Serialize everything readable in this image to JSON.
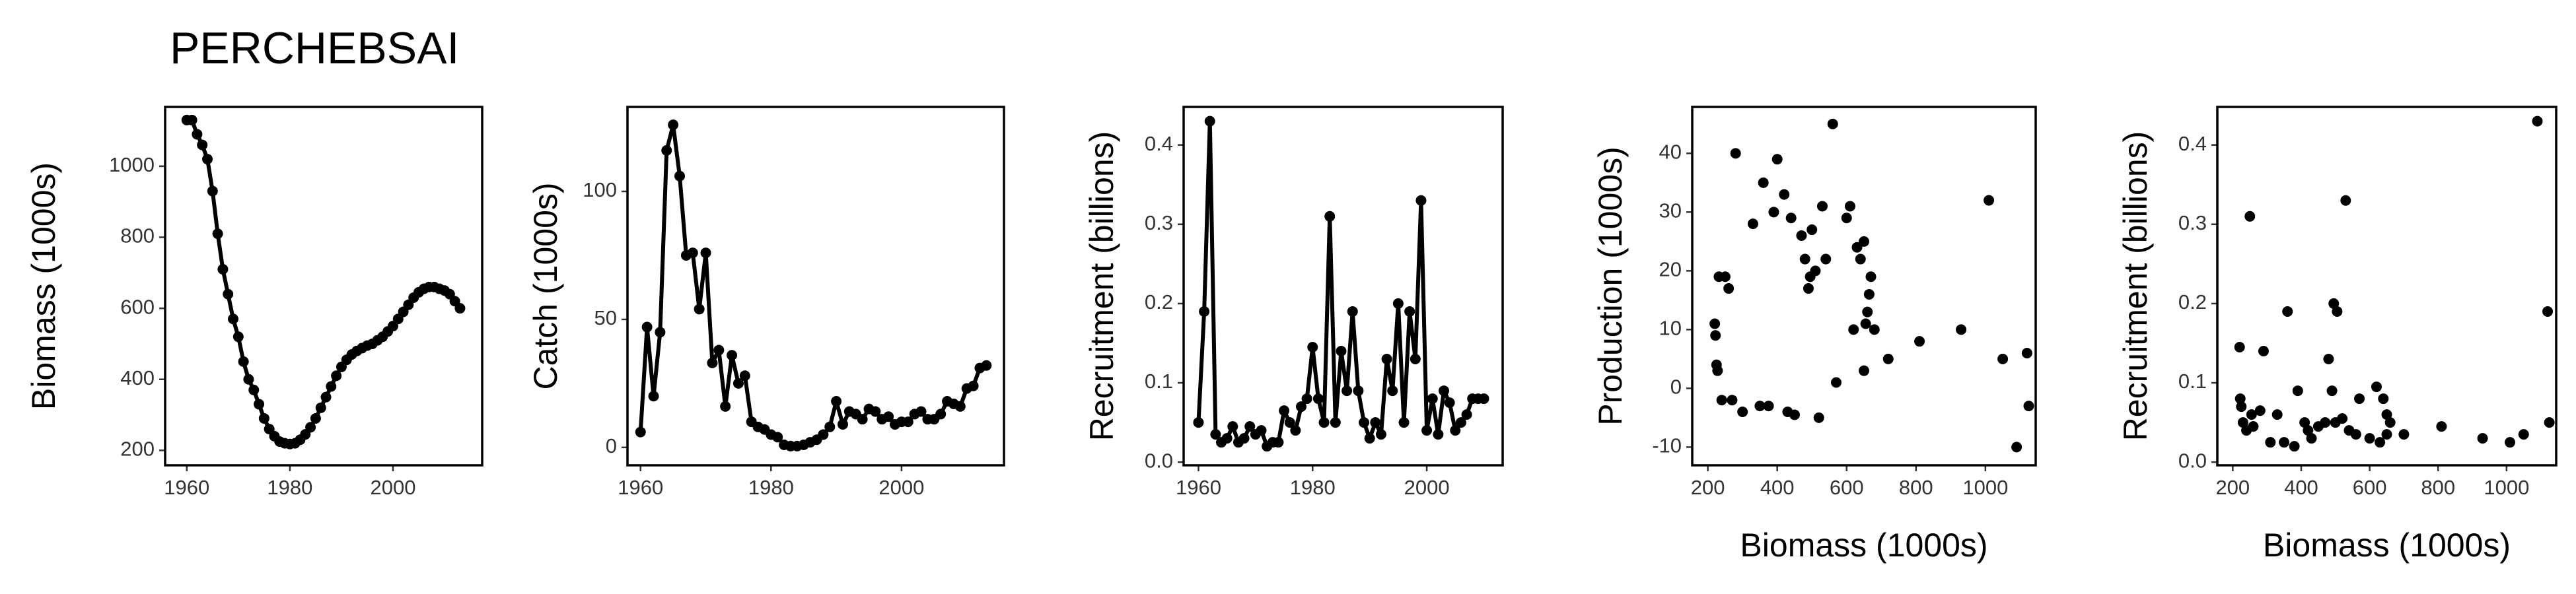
{
  "title": "PERCHEBSAI",
  "chart_data": [
    {
      "type": "line",
      "ylabel": "Biomass (1000s)",
      "x": [
        1960,
        1961,
        1962,
        1963,
        1964,
        1965,
        1966,
        1967,
        1968,
        1969,
        1970,
        1971,
        1972,
        1973,
        1974,
        1975,
        1976,
        1977,
        1978,
        1979,
        1980,
        1981,
        1982,
        1983,
        1984,
        1985,
        1986,
        1987,
        1988,
        1989,
        1990,
        1991,
        1992,
        1993,
        1994,
        1995,
        1996,
        1997,
        1998,
        1999,
        2000,
        2001,
        2002,
        2003,
        2004,
        2005,
        2006,
        2007,
        2008,
        2009,
        2010,
        2011,
        2012,
        2013
      ],
      "values": [
        1130,
        1130,
        1090,
        1060,
        1020,
        930,
        810,
        710,
        640,
        570,
        520,
        450,
        400,
        370,
        330,
        290,
        260,
        240,
        225,
        220,
        218,
        220,
        230,
        245,
        265,
        290,
        320,
        350,
        380,
        410,
        435,
        455,
        470,
        480,
        488,
        495,
        500,
        510,
        520,
        535,
        550,
        570,
        590,
        610,
        630,
        645,
        655,
        660,
        660,
        655,
        650,
        640,
        620,
        600
      ],
      "xlim": [
        1955.8,
        2017.3
      ],
      "ylim": [
        158,
        1167
      ],
      "xticks": [
        1960,
        1980,
        2000
      ],
      "yticks": [
        200,
        400,
        600,
        800,
        1000
      ],
      "color": "#000000"
    },
    {
      "type": "line",
      "ylabel": "Catch (1000s)",
      "x": [
        1960,
        1961,
        1962,
        1963,
        1964,
        1965,
        1966,
        1967,
        1968,
        1969,
        1970,
        1971,
        1972,
        1973,
        1974,
        1975,
        1976,
        1977,
        1978,
        1979,
        1980,
        1981,
        1982,
        1983,
        1984,
        1985,
        1986,
        1987,
        1988,
        1989,
        1990,
        1991,
        1992,
        1993,
        1994,
        1995,
        1996,
        1997,
        1998,
        1999,
        2000,
        2001,
        2002,
        2003,
        2004,
        2005,
        2006,
        2007,
        2008,
        2009,
        2010,
        2011,
        2012,
        2013
      ],
      "values": [
        6,
        47,
        20,
        45,
        116,
        126,
        106,
        75,
        76,
        54,
        76,
        33,
        38,
        16,
        36,
        25,
        28,
        10,
        8,
        7,
        5,
        4,
        1,
        0.5,
        0.5,
        1,
        2,
        3,
        5,
        8,
        18,
        9,
        14,
        13,
        11,
        15,
        14,
        11,
        12,
        9,
        10,
        10,
        13,
        14,
        11,
        11,
        13,
        18,
        17,
        16,
        23,
        24,
        31,
        32
      ],
      "xlim": [
        1958,
        2015.7
      ],
      "ylim": [
        -7,
        133
      ],
      "xticks": [
        1960,
        1980,
        2000
      ],
      "yticks": [
        0,
        50,
        100
      ],
      "color": "#000000"
    },
    {
      "type": "line",
      "ylabel": "Recruitment (billions)",
      "x": [
        1960,
        1961,
        1962,
        1963,
        1964,
        1965,
        1966,
        1967,
        1968,
        1969,
        1970,
        1971,
        1972,
        1973,
        1974,
        1975,
        1976,
        1977,
        1978,
        1979,
        1980,
        1981,
        1982,
        1983,
        1984,
        1985,
        1986,
        1987,
        1988,
        1989,
        1990,
        1991,
        1992,
        1993,
        1994,
        1995,
        1996,
        1997,
        1998,
        1999,
        2000,
        2001,
        2002,
        2003,
        2004,
        2005,
        2006,
        2007,
        2008,
        2009,
        2010
      ],
      "values": [
        0.05,
        0.19,
        0.43,
        0.035,
        0.025,
        0.03,
        0.045,
        0.025,
        0.03,
        0.045,
        0.035,
        0.04,
        0.02,
        0.025,
        0.025,
        0.065,
        0.05,
        0.04,
        0.07,
        0.08,
        0.145,
        0.08,
        0.05,
        0.31,
        0.05,
        0.14,
        0.09,
        0.19,
        0.09,
        0.05,
        0.03,
        0.05,
        0.035,
        0.13,
        0.09,
        0.2,
        0.05,
        0.19,
        0.13,
        0.33,
        0.04,
        0.08,
        0.035,
        0.09,
        0.075,
        0.04,
        0.05,
        0.06,
        0.08,
        0.08,
        0.08
      ],
      "xlim": [
        1957.4,
        2013.3
      ],
      "ylim": [
        -0.004,
        0.448
      ],
      "xticks": [
        1960,
        1980,
        2000
      ],
      "yticks": [
        {
          "value": 0,
          "label": "0.0"
        },
        0.1,
        0.2,
        0.3,
        0.4
      ],
      "color": "#000000"
    },
    {
      "type": "scatter",
      "xlabel": "Biomass (1000s)",
      "ylabel": "Production (1000s)",
      "x": [
        220,
        222,
        225,
        228,
        232,
        240,
        250,
        260,
        270,
        280,
        300,
        330,
        350,
        360,
        375,
        390,
        400,
        420,
        430,
        450,
        440,
        470,
        480,
        490,
        495,
        500,
        510,
        520,
        530,
        540,
        560,
        570,
        600,
        610,
        620,
        630,
        640,
        650,
        650,
        655,
        660,
        665,
        670,
        680,
        720,
        810,
        930,
        1010,
        1050,
        1090,
        1120,
        1125
      ],
      "values": [
        11,
        9,
        4,
        3,
        19,
        -2,
        19,
        17,
        -2,
        40,
        -4,
        28,
        -3,
        35,
        -3,
        30,
        39,
        33,
        -4,
        -4.5,
        29,
        26,
        22,
        17,
        19,
        27,
        20,
        -5,
        31,
        22,
        45,
        1,
        29,
        31,
        10,
        24,
        22,
        3,
        25,
        11,
        13,
        16,
        19,
        10,
        5,
        8,
        10,
        32,
        5,
        -10,
        6,
        -3
      ],
      "xlim": [
        155,
        1145
      ],
      "ylim": [
        -13.1,
        47.9
      ],
      "xticks": [
        200,
        400,
        600,
        800,
        1000
      ],
      "yticks": [
        -10,
        0,
        10,
        20,
        30,
        40
      ],
      "color": "#000000"
    },
    {
      "type": "scatter",
      "xlabel": "Biomass (1000s)",
      "ylabel": "Recruitment (billions)",
      "x": [
        220,
        222,
        225,
        230,
        240,
        250,
        255,
        260,
        280,
        290,
        310,
        330,
        350,
        360,
        380,
        390,
        410,
        420,
        430,
        450,
        470,
        480,
        490,
        495,
        500,
        505,
        520,
        530,
        540,
        560,
        570,
        600,
        620,
        630,
        640,
        650,
        650,
        660,
        700,
        810,
        930,
        1010,
        1050,
        1090,
        1120,
        1125
      ],
      "values": [
        0.145,
        0.08,
        0.07,
        0.05,
        0.04,
        0.31,
        0.06,
        0.045,
        0.065,
        0.14,
        0.025,
        0.06,
        0.025,
        0.19,
        0.02,
        0.09,
        0.05,
        0.04,
        0.03,
        0.045,
        0.05,
        0.13,
        0.09,
        0.2,
        0.05,
        0.19,
        0.055,
        0.33,
        0.04,
        0.035,
        0.08,
        0.03,
        0.095,
        0.025,
        0.08,
        0.035,
        0.06,
        0.05,
        0.035,
        0.045,
        0.03,
        0.025,
        0.035,
        0.43,
        0.19,
        0.05
      ],
      "xlim": [
        155,
        1145
      ],
      "ylim": [
        -0.004,
        0.448
      ],
      "xticks": [
        200,
        400,
        600,
        800,
        1000
      ],
      "yticks": [
        {
          "value": 0,
          "label": "0.0"
        },
        0.1,
        0.2,
        0.3,
        0.4
      ],
      "color": "#000000"
    }
  ]
}
